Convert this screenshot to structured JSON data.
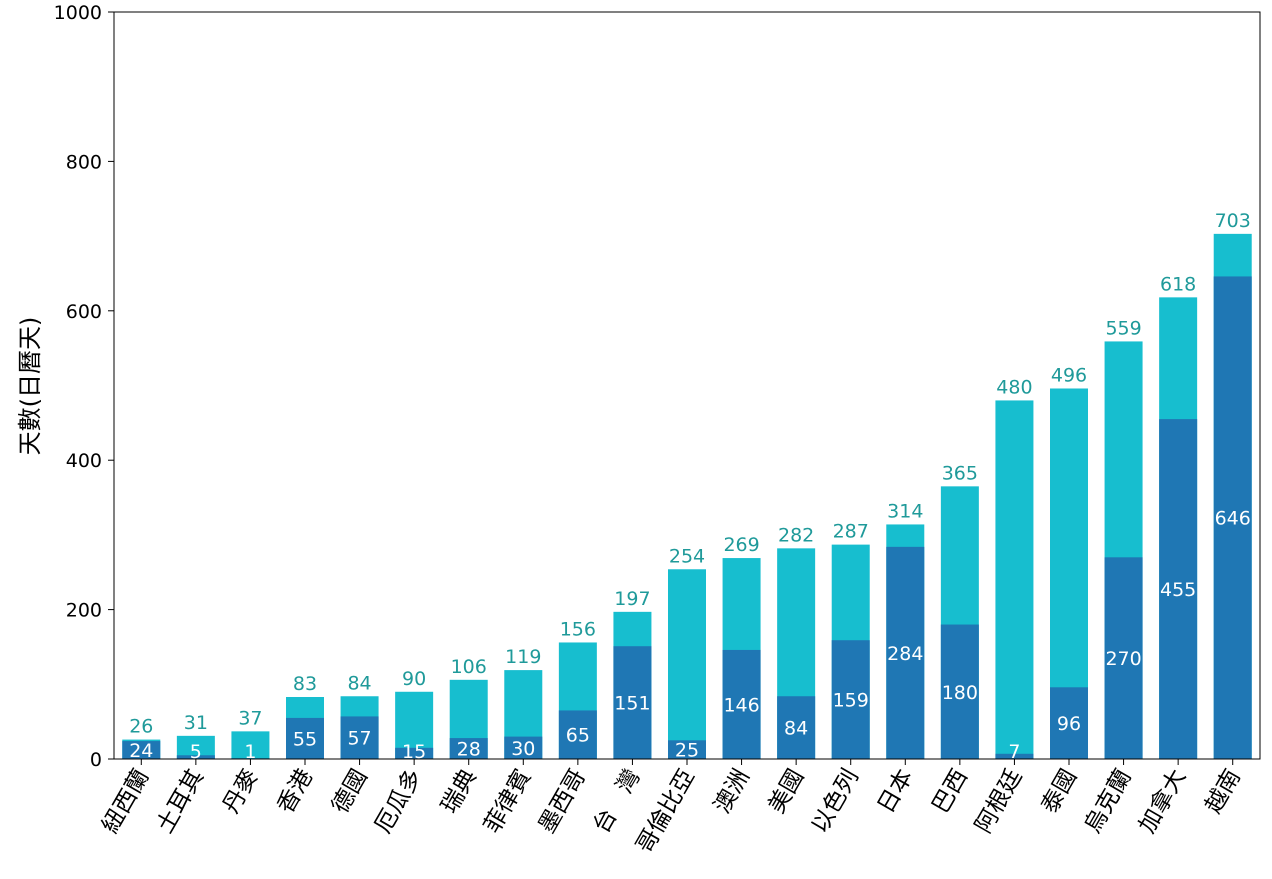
{
  "chart_data": {
    "type": "bar",
    "stacked": "overlay",
    "categories": [
      "紐西蘭",
      "土耳其",
      "丹麥",
      "香港",
      "德國",
      "厄瓜多",
      "瑞典",
      "菲律賓",
      "墨西哥",
      "台　灣",
      "哥倫比亞",
      "澳洲",
      "美國",
      "以色列",
      "日本",
      "巴西",
      "阿根廷",
      "泰國",
      "烏克蘭",
      "加拿大",
      "越南"
    ],
    "series": [
      {
        "values": [
          26,
          31,
          37,
          83,
          84,
          90,
          106,
          119,
          156,
          197,
          254,
          269,
          282,
          287,
          314,
          365,
          480,
          496,
          559,
          618,
          703
        ]
      },
      {
        "values": [
          24,
          5,
          1,
          55,
          57,
          15,
          28,
          30,
          65,
          151,
          25,
          146,
          84,
          159,
          284,
          180,
          7,
          96,
          270,
          455,
          646
        ]
      }
    ],
    "title": "",
    "xlabel": "",
    "ylabel": "天數(日曆天)",
    "ylim": [
      0,
      1000
    ],
    "yticks": [
      0,
      200,
      400,
      600,
      800,
      1000
    ],
    "grid": false,
    "legend": "none",
    "colors": {
      "total": "#17becf",
      "inner": "#1f77b4",
      "total_label": "#1f9a9a",
      "inner_label": "#ffffff",
      "axis": "#000000"
    }
  }
}
